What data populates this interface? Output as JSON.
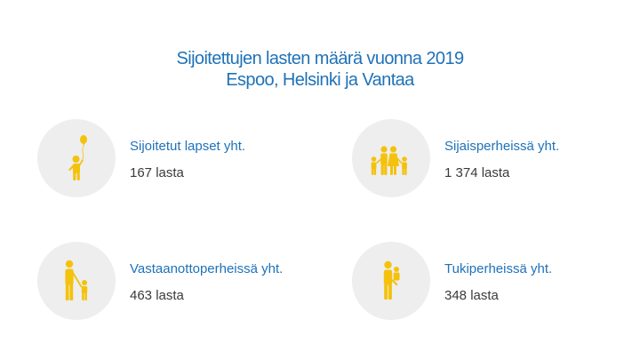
{
  "title": {
    "line1": "Sijoitettujen lasten määrä vuonna 2019",
    "line2": "Espoo, Helsinki ja Vantaa"
  },
  "accent_color": "#1f72b8",
  "icon_color": "#f4c20d",
  "stats": [
    {
      "label": "Sijoitetut lapset yht.",
      "value": "167 lasta",
      "icon": "child-with-balloon-icon"
    },
    {
      "label": "Sijaisperheissä yht.",
      "value": "1 374 lasta",
      "icon": "family-icon"
    },
    {
      "label": "Vastaanottoperheissä yht.",
      "value": "463 lasta",
      "icon": "adult-with-child-icon"
    },
    {
      "label": "Tukiperheissä yht.",
      "value": "348 lasta",
      "icon": "adult-carrying-child-icon"
    }
  ]
}
